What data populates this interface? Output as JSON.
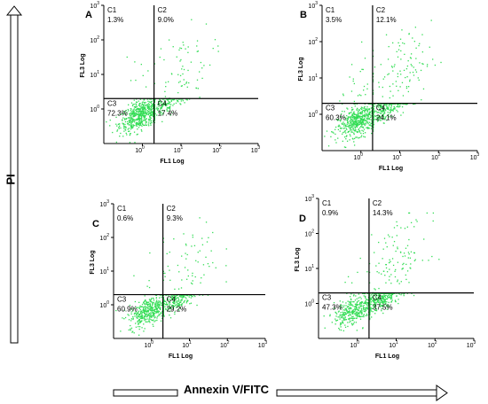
{
  "figure": {
    "y_axis_word": "PI",
    "x_axis_word": "Annexin V/FITC"
  },
  "chart_data": [
    {
      "type": "scatter",
      "panel": "A",
      "xlabel": "FL1 Log",
      "ylabel": "FL3 Log",
      "xscale": "log",
      "yscale": "log",
      "xlim": [
        0.1,
        1000
      ],
      "ylim": [
        0.1,
        1000
      ],
      "x_gate": 2.0,
      "y_gate": 2.0,
      "quadrants": [
        {
          "name": "C1",
          "percent": "1.3%"
        },
        {
          "name": "C2",
          "percent": "9.0%"
        },
        {
          "name": "C3",
          "percent": "72.3%"
        },
        {
          "name": "C4",
          "percent": "17.4%"
        }
      ]
    },
    {
      "type": "scatter",
      "panel": "B",
      "xlabel": "FL1 Log",
      "ylabel": "FL3 Log",
      "xscale": "log",
      "yscale": "log",
      "xlim": [
        0.1,
        1000
      ],
      "ylim": [
        0.1,
        1000
      ],
      "x_gate": 2.0,
      "y_gate": 2.0,
      "quadrants": [
        {
          "name": "C1",
          "percent": "3.5%"
        },
        {
          "name": "C2",
          "percent": "12.1%"
        },
        {
          "name": "C3",
          "percent": "60.3%"
        },
        {
          "name": "C4",
          "percent": "24.1%"
        }
      ]
    },
    {
      "type": "scatter",
      "panel": "C",
      "xlabel": "FL1 Log",
      "ylabel": "FL3 Log",
      "xscale": "log",
      "yscale": "log",
      "xlim": [
        0.1,
        1000
      ],
      "ylim": [
        0.1,
        1000
      ],
      "x_gate": 2.0,
      "y_gate": 2.0,
      "quadrants": [
        {
          "name": "C1",
          "percent": "0.6%"
        },
        {
          "name": "C2",
          "percent": "9.3%"
        },
        {
          "name": "C3",
          "percent": "60.9%"
        },
        {
          "name": "C4",
          "percent": "29.2%"
        }
      ]
    },
    {
      "type": "scatter",
      "panel": "D",
      "xlabel": "FL1 Log",
      "ylabel": "FL3 Log",
      "xscale": "log",
      "yscale": "log",
      "xlim": [
        0.1,
        1000
      ],
      "ylim": [
        0.1,
        1000
      ],
      "x_gate": 2.0,
      "y_gate": 2.0,
      "quadrants": [
        {
          "name": "C1",
          "percent": "0.9%"
        },
        {
          "name": "C2",
          "percent": "14.3%"
        },
        {
          "name": "C3",
          "percent": "47.3%"
        },
        {
          "name": "C4",
          "percent": "37.5%"
        }
      ]
    }
  ],
  "ticks": [
    "10",
    "10"
  ],
  "tick_exponents": [
    "-1",
    "0",
    "1",
    "2",
    "3"
  ],
  "colors": {
    "dots": "#33dd55",
    "axis": "#000000"
  }
}
